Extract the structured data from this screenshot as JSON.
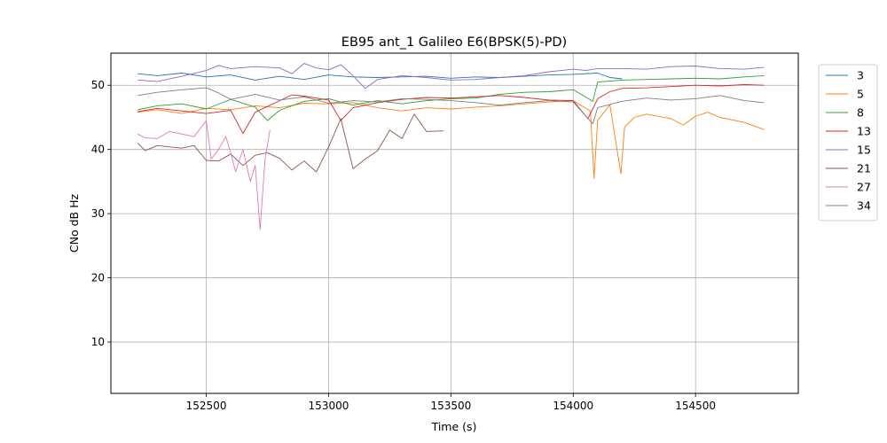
{
  "chart_data": {
    "type": "line",
    "title": "EB95 ant_1 Galileo E6(BPSK(5)-PD)",
    "xlabel": "Time (s)",
    "ylabel": "CNo dB Hz",
    "xlim": [
      152110,
      154920
    ],
    "ylim": [
      2,
      55
    ],
    "xticks": [
      152500,
      153000,
      153500,
      154000,
      154500
    ],
    "yticks": [
      10,
      20,
      30,
      40,
      50
    ],
    "grid": true,
    "legend_position": "outside-right",
    "series": [
      {
        "name": "3",
        "color": "#1f77b4",
        "points": [
          [
            152220,
            51.8
          ],
          [
            152300,
            51.5
          ],
          [
            152400,
            51.9
          ],
          [
            152500,
            51.3
          ],
          [
            152600,
            51.6
          ],
          [
            152700,
            50.8
          ],
          [
            152800,
            51.4
          ],
          [
            152900,
            50.9
          ],
          [
            153000,
            51.6
          ],
          [
            153100,
            51.3
          ],
          [
            153200,
            51.2
          ],
          [
            153300,
            51.3
          ],
          [
            153400,
            51.4
          ],
          [
            153500,
            51.1
          ],
          [
            153600,
            51.3
          ],
          [
            153700,
            51.2
          ],
          [
            153800,
            51.4
          ],
          [
            153900,
            51.6
          ],
          [
            154000,
            51.7
          ],
          [
            154100,
            51.9
          ],
          [
            154150,
            51.2
          ],
          [
            154200,
            51.0
          ]
        ]
      },
      {
        "name": "5",
        "color": "#ff7f0e",
        "points": [
          [
            152220,
            45.8
          ],
          [
            152300,
            46.2
          ],
          [
            152400,
            45.6
          ],
          [
            152500,
            46.4
          ],
          [
            152600,
            46.2
          ],
          [
            152700,
            46.8
          ],
          [
            152800,
            46.5
          ],
          [
            152900,
            47.2
          ],
          [
            153000,
            47.1
          ],
          [
            153100,
            47.3
          ],
          [
            153200,
            46.5
          ],
          [
            153300,
            46.0
          ],
          [
            153400,
            46.5
          ],
          [
            153500,
            46.3
          ],
          [
            153600,
            46.6
          ],
          [
            153700,
            46.8
          ],
          [
            153800,
            47.1
          ],
          [
            153900,
            47.4
          ],
          [
            154000,
            47.6
          ],
          [
            154070,
            46.0
          ],
          [
            154085,
            35.5
          ],
          [
            154100,
            44.5
          ],
          [
            154150,
            47.0
          ],
          [
            154195,
            36.2
          ],
          [
            154210,
            43.5
          ],
          [
            154250,
            45.0
          ],
          [
            154300,
            45.5
          ],
          [
            154400,
            44.8
          ],
          [
            154450,
            43.8
          ],
          [
            154500,
            45.2
          ],
          [
            154550,
            45.8
          ],
          [
            154600,
            45.0
          ],
          [
            154700,
            44.2
          ],
          [
            154780,
            43.1
          ]
        ]
      },
      {
        "name": "8",
        "color": "#2ca02c",
        "points": [
          [
            152220,
            46.2
          ],
          [
            152300,
            46.8
          ],
          [
            152400,
            47.1
          ],
          [
            152500,
            46.3
          ],
          [
            152600,
            47.8
          ],
          [
            152700,
            46.6
          ],
          [
            152750,
            44.5
          ],
          [
            152800,
            46.1
          ],
          [
            152900,
            47.5
          ],
          [
            153000,
            47.9
          ],
          [
            153100,
            46.9
          ],
          [
            153200,
            47.6
          ],
          [
            153300,
            47.1
          ],
          [
            153400,
            47.6
          ],
          [
            153500,
            47.9
          ],
          [
            153600,
            48.0
          ],
          [
            153700,
            48.6
          ],
          [
            153800,
            48.9
          ],
          [
            153900,
            49.0
          ],
          [
            154000,
            49.3
          ],
          [
            154080,
            47.5
          ],
          [
            154100,
            50.5
          ],
          [
            154200,
            50.8
          ],
          [
            154300,
            50.9
          ],
          [
            154400,
            51.0
          ],
          [
            154500,
            51.1
          ],
          [
            154600,
            51.0
          ],
          [
            154700,
            51.3
          ],
          [
            154780,
            51.5
          ]
        ]
      },
      {
        "name": "13",
        "color": "#d62728",
        "points": [
          [
            152220,
            45.9
          ],
          [
            152300,
            46.4
          ],
          [
            152400,
            46.0
          ],
          [
            152500,
            45.6
          ],
          [
            152600,
            46.1
          ],
          [
            152650,
            42.5
          ],
          [
            152700,
            45.8
          ],
          [
            152800,
            47.6
          ],
          [
            152850,
            48.5
          ],
          [
            152900,
            48.3
          ],
          [
            153000,
            47.7
          ],
          [
            153050,
            44.5
          ],
          [
            153100,
            46.5
          ],
          [
            153200,
            47.3
          ],
          [
            153300,
            47.8
          ],
          [
            153400,
            48.1
          ],
          [
            153500,
            48.0
          ],
          [
            153600,
            48.2
          ],
          [
            153700,
            48.4
          ],
          [
            153800,
            48.1
          ],
          [
            153900,
            47.7
          ],
          [
            154000,
            47.6
          ],
          [
            154060,
            44.8
          ],
          [
            154100,
            47.9
          ],
          [
            154150,
            49.0
          ],
          [
            154200,
            49.5
          ],
          [
            154300,
            49.6
          ],
          [
            154400,
            49.8
          ],
          [
            154500,
            50.0
          ],
          [
            154600,
            49.9
          ],
          [
            154700,
            50.1
          ],
          [
            154780,
            50.0
          ]
        ]
      },
      {
        "name": "15",
        "color": "#9467bd",
        "points": [
          [
            152220,
            50.8
          ],
          [
            152300,
            50.6
          ],
          [
            152400,
            51.4
          ],
          [
            152500,
            52.3
          ],
          [
            152550,
            53.1
          ],
          [
            152600,
            52.6
          ],
          [
            152700,
            52.9
          ],
          [
            152800,
            52.7
          ],
          [
            152850,
            51.8
          ],
          [
            152900,
            53.4
          ],
          [
            152950,
            52.7
          ],
          [
            153000,
            52.4
          ],
          [
            153050,
            53.2
          ],
          [
            153100,
            51.5
          ],
          [
            153150,
            49.5
          ],
          [
            153200,
            50.9
          ],
          [
            153300,
            51.5
          ],
          [
            153400,
            51.2
          ],
          [
            153500,
            50.8
          ],
          [
            153600,
            50.9
          ],
          [
            153700,
            51.2
          ],
          [
            153800,
            51.5
          ],
          [
            153900,
            52.1
          ],
          [
            154000,
            52.5
          ],
          [
            154050,
            52.3
          ],
          [
            154100,
            52.6
          ],
          [
            154200,
            52.6
          ],
          [
            154300,
            52.5
          ],
          [
            154400,
            52.9
          ],
          [
            154500,
            53.0
          ],
          [
            154600,
            52.6
          ],
          [
            154700,
            52.5
          ],
          [
            154780,
            52.8
          ]
        ]
      },
      {
        "name": "21",
        "color": "#8c564b",
        "points": [
          [
            152220,
            41.0
          ],
          [
            152250,
            39.8
          ],
          [
            152300,
            40.6
          ],
          [
            152400,
            40.2
          ],
          [
            152450,
            40.6
          ],
          [
            152500,
            38.3
          ],
          [
            152550,
            38.2
          ],
          [
            152600,
            39.3
          ],
          [
            152650,
            37.5
          ],
          [
            152700,
            39.1
          ],
          [
            152750,
            39.5
          ],
          [
            152800,
            38.6
          ],
          [
            152850,
            36.8
          ],
          [
            152900,
            38.2
          ],
          [
            152950,
            36.5
          ],
          [
            153000,
            40.4
          ],
          [
            153050,
            44.8
          ],
          [
            153100,
            37.0
          ],
          [
            153150,
            38.5
          ],
          [
            153200,
            39.8
          ],
          [
            153250,
            43.0
          ],
          [
            153300,
            41.7
          ],
          [
            153350,
            45.5
          ],
          [
            153400,
            42.8
          ],
          [
            153470,
            42.9
          ]
        ]
      },
      {
        "name": "27",
        "color": "#e377c2",
        "points": [
          [
            152220,
            42.4
          ],
          [
            152250,
            41.8
          ],
          [
            152300,
            41.7
          ],
          [
            152350,
            42.8
          ],
          [
            152400,
            42.4
          ],
          [
            152450,
            42.0
          ],
          [
            152500,
            44.5
          ],
          [
            152520,
            38.5
          ],
          [
            152550,
            40.0
          ],
          [
            152580,
            42.0
          ],
          [
            152600,
            39.5
          ],
          [
            152620,
            36.5
          ],
          [
            152650,
            40.0
          ],
          [
            152680,
            35.0
          ],
          [
            152700,
            37.5
          ],
          [
            152720,
            27.5
          ],
          [
            152740,
            38.5
          ],
          [
            152760,
            43.0
          ]
        ]
      },
      {
        "name": "34",
        "color": "#7f7f7f",
        "points": [
          [
            152220,
            48.4
          ],
          [
            152300,
            48.9
          ],
          [
            152400,
            49.3
          ],
          [
            152500,
            49.6
          ],
          [
            152550,
            48.8
          ],
          [
            152600,
            47.8
          ],
          [
            152700,
            48.6
          ],
          [
            152800,
            47.7
          ],
          [
            152900,
            48.2
          ],
          [
            153000,
            47.2
          ],
          [
            153100,
            47.6
          ],
          [
            153200,
            47.4
          ],
          [
            153300,
            47.9
          ],
          [
            153400,
            47.8
          ],
          [
            153500,
            47.6
          ],
          [
            153600,
            47.3
          ],
          [
            153700,
            46.9
          ],
          [
            153800,
            47.3
          ],
          [
            153900,
            47.6
          ],
          [
            154000,
            47.4
          ],
          [
            154080,
            44.0
          ],
          [
            154100,
            46.5
          ],
          [
            154200,
            47.5
          ],
          [
            154300,
            48.0
          ],
          [
            154400,
            47.7
          ],
          [
            154500,
            47.9
          ],
          [
            154600,
            48.4
          ],
          [
            154700,
            47.6
          ],
          [
            154780,
            47.3
          ]
        ]
      }
    ]
  }
}
